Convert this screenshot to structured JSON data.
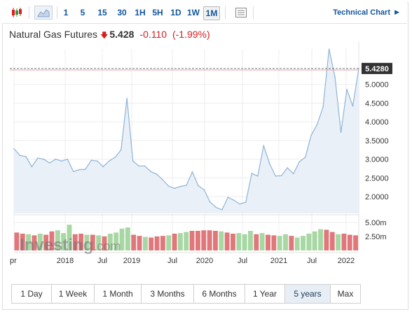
{
  "toolbar": {
    "intervals": [
      "1",
      "5",
      "15",
      "30",
      "1H",
      "5H",
      "1D",
      "1W",
      "1M"
    ],
    "active_interval": "1M",
    "technical_chart_label": "Technical Chart"
  },
  "quote": {
    "name": "Natural Gas Futures",
    "price": "5.428",
    "change": "-0.110",
    "change_pct": "(-1.99%)",
    "direction": "down",
    "down_color": "#d51f20"
  },
  "watermark": {
    "brand_part1": "Investing",
    "brand_part2": ".com"
  },
  "ranges": {
    "items": [
      "1 Day",
      "1 Week",
      "1 Month",
      "3 Months",
      "6 Months",
      "1 Year",
      "5 years",
      "Max"
    ],
    "active": "5 years"
  },
  "chart_data": {
    "type": "area",
    "x_labels": [
      "Apr",
      "2018",
      "Jul",
      "2019",
      "Jul",
      "2020",
      "Jul",
      "2021",
      "Jul",
      "2022"
    ],
    "x_labels_note": "first tick label is printed cut off as 'pr'",
    "y_ticks": [
      "2.0000",
      "2.5000",
      "3.0000",
      "3.5000",
      "4.0000",
      "4.5000",
      "5.0000"
    ],
    "ylim": [
      1.55,
      5.95
    ],
    "last_price_label": "5.4280",
    "last_price": 5.428,
    "line_color": "#8fb4d6",
    "fill_color": "#e9f0f8",
    "price": [
      3.28,
      3.1,
      3.07,
      2.8,
      3.03,
      3.0,
      2.9,
      3.0,
      2.95,
      3.0,
      2.67,
      2.72,
      2.73,
      2.97,
      2.95,
      2.8,
      2.95,
      3.05,
      3.25,
      4.63,
      2.95,
      2.82,
      2.82,
      2.67,
      2.6,
      2.45,
      2.28,
      2.22,
      2.27,
      2.3,
      2.66,
      2.29,
      2.18,
      1.85,
      1.71,
      1.65,
      1.98,
      1.9,
      1.8,
      1.85,
      2.62,
      2.55,
      3.36,
      2.88,
      2.55,
      2.56,
      2.77,
      2.61,
      2.93,
      3.05,
      3.64,
      3.93,
      4.4,
      5.95,
      5.2,
      3.72,
      4.87,
      4.42,
      5.43
    ],
    "volume_ticks": [
      "2.50m",
      "5.00m"
    ],
    "volume_max": 6.0,
    "volume_up_color": "#a7d7a3",
    "volume_down_color": "#e0777a",
    "volume": [
      {
        "v": 3.2,
        "d": "down"
      },
      {
        "v": 3.0,
        "d": "down"
      },
      {
        "v": 2.9,
        "d": "up"
      },
      {
        "v": 2.7,
        "d": "down"
      },
      {
        "v": 3.0,
        "d": "up"
      },
      {
        "v": 2.8,
        "d": "down"
      },
      {
        "v": 3.4,
        "d": "down"
      },
      {
        "v": 3.6,
        "d": "up"
      },
      {
        "v": 3.1,
        "d": "up"
      },
      {
        "v": 4.6,
        "d": "up"
      },
      {
        "v": 2.9,
        "d": "down"
      },
      {
        "v": 3.0,
        "d": "down"
      },
      {
        "v": 2.8,
        "d": "up"
      },
      {
        "v": 2.8,
        "d": "down"
      },
      {
        "v": 2.7,
        "d": "up"
      },
      {
        "v": 2.5,
        "d": "down"
      },
      {
        "v": 3.0,
        "d": "up"
      },
      {
        "v": 3.2,
        "d": "up"
      },
      {
        "v": 3.9,
        "d": "up"
      },
      {
        "v": 4.1,
        "d": "up"
      },
      {
        "v": 2.8,
        "d": "down"
      },
      {
        "v": 2.6,
        "d": "down"
      },
      {
        "v": 2.4,
        "d": "up"
      },
      {
        "v": 2.3,
        "d": "down"
      },
      {
        "v": 2.5,
        "d": "down"
      },
      {
        "v": 2.6,
        "d": "down"
      },
      {
        "v": 2.7,
        "d": "up"
      },
      {
        "v": 3.0,
        "d": "down"
      },
      {
        "v": 3.1,
        "d": "up"
      },
      {
        "v": 3.3,
        "d": "up"
      },
      {
        "v": 3.5,
        "d": "down"
      },
      {
        "v": 3.5,
        "d": "down"
      },
      {
        "v": 3.6,
        "d": "down"
      },
      {
        "v": 3.6,
        "d": "down"
      },
      {
        "v": 3.5,
        "d": "down"
      },
      {
        "v": 3.4,
        "d": "up"
      },
      {
        "v": 3.2,
        "d": "down"
      },
      {
        "v": 3.0,
        "d": "down"
      },
      {
        "v": 3.1,
        "d": "up"
      },
      {
        "v": 2.9,
        "d": "up"
      },
      {
        "v": 3.5,
        "d": "up"
      },
      {
        "v": 2.9,
        "d": "down"
      },
      {
        "v": 3.1,
        "d": "up"
      },
      {
        "v": 2.8,
        "d": "down"
      },
      {
        "v": 2.7,
        "d": "down"
      },
      {
        "v": 2.6,
        "d": "up"
      },
      {
        "v": 2.9,
        "d": "up"
      },
      {
        "v": 2.6,
        "d": "down"
      },
      {
        "v": 2.3,
        "d": "up"
      },
      {
        "v": 2.6,
        "d": "up"
      },
      {
        "v": 3.0,
        "d": "up"
      },
      {
        "v": 3.4,
        "d": "up"
      },
      {
        "v": 3.8,
        "d": "up"
      },
      {
        "v": 3.7,
        "d": "down"
      },
      {
        "v": 3.3,
        "d": "down"
      },
      {
        "v": 2.9,
        "d": "up"
      },
      {
        "v": 3.0,
        "d": "down"
      },
      {
        "v": 2.8,
        "d": "down"
      },
      {
        "v": 2.7,
        "d": "down"
      }
    ]
  }
}
